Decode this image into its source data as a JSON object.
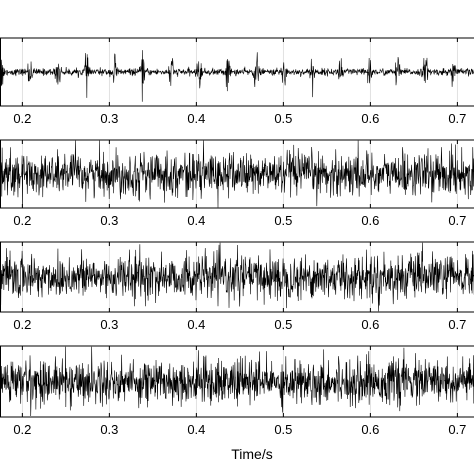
{
  "chart_data": [
    {
      "type": "line",
      "x_ticks": [
        0.2,
        0.3,
        0.4,
        0.5,
        0.6,
        0.7
      ],
      "x_tick_labels": [
        "0.2",
        "0.3",
        "0.4",
        "0.5",
        "0.6",
        "0.7"
      ],
      "xlim": [
        0.172,
        0.726
      ],
      "xlabel": "",
      "grid": true,
      "signal": "impulsive vibration waveform with periodic bursts",
      "burst_period_s": 0.0325,
      "baseline_amplitude": 0.12,
      "burst_amplitude": 0.9
    },
    {
      "type": "line",
      "x_ticks": [
        0.2,
        0.3,
        0.4,
        0.5,
        0.6,
        0.7
      ],
      "x_tick_labels": [
        "0.2",
        "0.3",
        "0.4",
        "0.5",
        "0.6",
        "0.7"
      ],
      "xlim": [
        0.172,
        0.726
      ],
      "xlabel": "",
      "grid": true,
      "signal": "broadband noise waveform",
      "baseline_amplitude": 0.75
    },
    {
      "type": "line",
      "x_ticks": [
        0.2,
        0.3,
        0.4,
        0.5,
        0.6,
        0.7
      ],
      "x_tick_labels": [
        "0.2",
        "0.3",
        "0.4",
        "0.5",
        "0.6",
        "0.7"
      ],
      "xlim": [
        0.172,
        0.726
      ],
      "xlabel": "",
      "grid": true,
      "signal": "broadband noise waveform",
      "baseline_amplitude": 0.75
    },
    {
      "type": "line",
      "x_ticks": [
        0.2,
        0.3,
        0.4,
        0.5,
        0.6,
        0.7
      ],
      "x_tick_labels": [
        "0.2",
        "0.3",
        "0.4",
        "0.5",
        "0.6",
        "0.7"
      ],
      "xlim": [
        0.172,
        0.726
      ],
      "xlabel": "Time/s",
      "grid": true,
      "signal": "broadband noise waveform",
      "baseline_amplitude": 0.75
    }
  ],
  "colors": {
    "trace": "#000000",
    "axis": "#000000",
    "grid": "#d9d9d9",
    "background": "#ffffff"
  }
}
